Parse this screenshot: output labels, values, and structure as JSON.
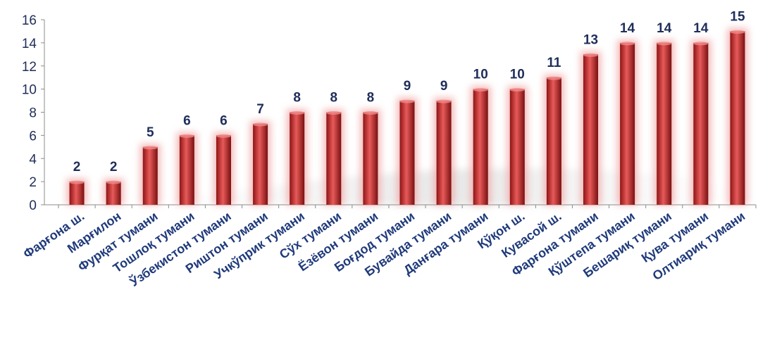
{
  "chart_data": {
    "type": "bar",
    "categories": [
      "Фарғона ш.",
      "Марғилон",
      "Фурқат тумани",
      "Тошлоқ тумани",
      "Ўзбекистон тумани",
      "Риштон тумани",
      "Учкўприк тумани",
      "Сўх тумани",
      "Ёзёвон тумани",
      "Боғдод тумани",
      "Бувайда тумани",
      "Данғара тумани",
      "Қўқон ш.",
      "Кувасой ш.",
      "Фарғона тумани",
      "Қўштепа тумани",
      "Бешариқ тумани",
      "Қува тумани",
      "Олтиариқ тумани"
    ],
    "values": [
      2,
      2,
      5,
      6,
      6,
      7,
      8,
      8,
      8,
      9,
      9,
      10,
      10,
      11,
      13,
      14,
      14,
      14,
      15
    ],
    "yticks": [
      "0",
      "2",
      "4",
      "6",
      "8",
      "10",
      "12",
      "14",
      "16"
    ],
    "ylim": [
      0,
      16
    ],
    "title": "",
    "xlabel": "",
    "ylabel": "",
    "colors": {
      "bar_dark": "#8e1414",
      "bar_mid": "#c0272d",
      "bar_light": "#e85a5a",
      "glow": "#f0a0a0",
      "label": "#1f2d5a",
      "category": "#1f3a7a",
      "axis": "#8c8c8c"
    }
  }
}
